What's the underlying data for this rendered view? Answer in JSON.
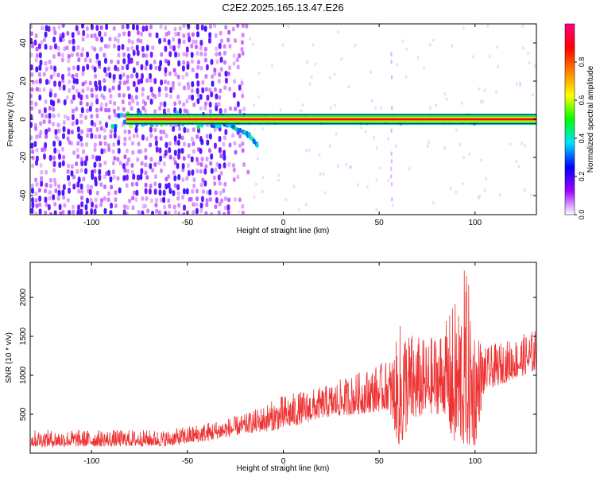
{
  "figure": {
    "title": "C2E2.2025.165.13.47.E26"
  },
  "chart_data": [
    {
      "type": "heatmap",
      "title": "C2E2.2025.165.13.47.E26",
      "xlabel": "Height of straight line (km)",
      "ylabel": "Frequency (Hz)",
      "xlim": [
        -132,
        132
      ],
      "ylim": [
        -50,
        50
      ],
      "xticks": [
        -100,
        -50,
        0,
        50,
        100
      ],
      "yticks": [
        -40,
        -20,
        0,
        20,
        40
      ],
      "grid": false,
      "colorbar": {
        "label": "Normalized spectral amplitude",
        "range": [
          0.0,
          1.0
        ],
        "ticks": [
          "0.0",
          "0.2",
          "0.4",
          "0.6",
          "0.8"
        ],
        "colors": [
          "#ffffff",
          "#a000ff",
          "#0000ff",
          "#00e0ff",
          "#00ff00",
          "#ffff00",
          "#ff8000",
          "#ff0000",
          "#ff0080"
        ]
      },
      "features": {
        "noise_region_x": [
          -132,
          -25
        ],
        "carrier_line_frequency": 0,
        "carrier_line_x": [
          -90,
          132
        ],
        "drifting_branch": {
          "x": [
            -40,
            -30,
            -20,
            -14
          ],
          "y": [
            0,
            -3,
            -7,
            -14
          ]
        },
        "vertical_streak_x": 56
      }
    },
    {
      "type": "line",
      "xlabel": "Height of straight line (km)",
      "ylabel": "SNR (10 * v/v)",
      "xlim": [
        -132,
        132
      ],
      "ylim": [
        0,
        2450
      ],
      "xticks": [
        -100,
        -50,
        0,
        50,
        100
      ],
      "yticks": [
        500,
        1000,
        1500,
        2000
      ],
      "grid": false,
      "series": [
        {
          "color": "#ee3333",
          "envelope_x": [
            -132,
            -60,
            -40,
            -20,
            0,
            20,
            40,
            55,
            60,
            62,
            65,
            75,
            85,
            88,
            92,
            95,
            100,
            105,
            110,
            120,
            132
          ],
          "envelope_low": [
            80,
            90,
            150,
            250,
            300,
            450,
            500,
            550,
            100,
            40,
            350,
            500,
            500,
            80,
            100,
            50,
            80,
            800,
            850,
            950,
            1050
          ],
          "envelope_high": [
            300,
            300,
            400,
            500,
            750,
            850,
            1050,
            1200,
            1500,
            1900,
            1600,
            1450,
            1700,
            1900,
            2100,
            2450,
            1700,
            1350,
            1400,
            1480,
            1600
          ]
        }
      ]
    }
  ]
}
